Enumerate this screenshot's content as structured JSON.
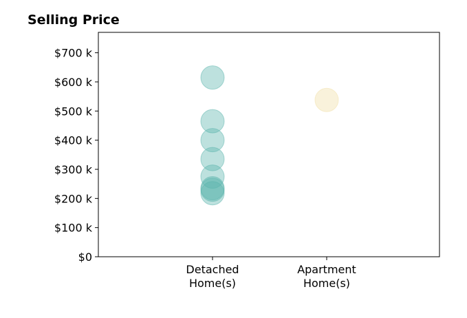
{
  "chart_data": {
    "type": "scatter",
    "title": "Selling Price",
    "xlabel": "",
    "ylabel": "",
    "categories": [
      "Detached\nHome(s)",
      "Apartment\nHome(s)"
    ],
    "ylim": [
      0,
      770000
    ],
    "yticks": [
      {
        "value": 0,
        "label": "$0"
      },
      {
        "value": 100000,
        "label": "$100 k"
      },
      {
        "value": 200000,
        "label": "$200 k"
      },
      {
        "value": 300000,
        "label": "$300 k"
      },
      {
        "value": 400000,
        "label": "$400 k"
      },
      {
        "value": 500000,
        "label": "$500 k"
      },
      {
        "value": 600000,
        "label": "$600 k"
      },
      {
        "value": 700000,
        "label": "$700 k"
      }
    ],
    "grid": false,
    "legend": "none",
    "series": [
      {
        "category": "Detached\nHome(s)",
        "color": "#5ab4ac",
        "values": [
          615000,
          465000,
          400000,
          335000,
          275000,
          235000,
          230000,
          218000
        ]
      },
      {
        "category": "Apartment\nHome(s)",
        "color": "#f1dfa6",
        "values": [
          538000
        ]
      }
    ]
  }
}
